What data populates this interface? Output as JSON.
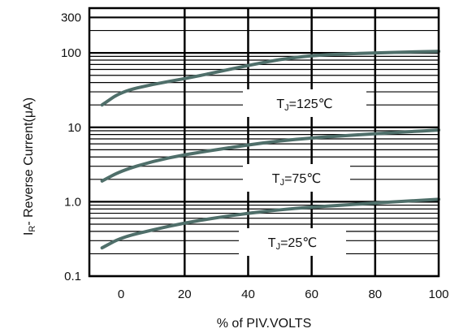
{
  "chart_data": {
    "type": "line",
    "title": "",
    "xlabel": "% of PIV.VOLTS",
    "ylabel_parts": {
      "main": "I",
      "sub": "R",
      "rest": "- Reverse Current(μA)"
    },
    "xscale": "linear",
    "yscale": "log",
    "xlim": [
      -10,
      100
    ],
    "ylim": [
      0.1,
      400
    ],
    "grid": true,
    "x_ticks": [
      {
        "value": 0,
        "label": "0"
      },
      {
        "value": 20,
        "label": "20"
      },
      {
        "value": 40,
        "label": "40"
      },
      {
        "value": 60,
        "label": "60"
      },
      {
        "value": 80,
        "label": "80"
      },
      {
        "value": 100,
        "label": "100"
      }
    ],
    "y_ticks": [
      {
        "value": 0.1,
        "label": "0.1"
      },
      {
        "value": 1.0,
        "label": "1.0"
      },
      {
        "value": 10,
        "label": "10"
      },
      {
        "value": 100,
        "label": "100"
      },
      {
        "value": 300,
        "label": "300"
      }
    ],
    "series": [
      {
        "label_parts": {
          "main": "T",
          "sub": "J",
          "rest": "=125℃"
        },
        "x": [
          -6,
          0,
          10,
          20,
          30,
          40,
          50,
          60,
          70,
          80,
          90,
          100
        ],
        "y": [
          20,
          30,
          38,
          45,
          55,
          68,
          82,
          92,
          97,
          100,
          103,
          105
        ]
      },
      {
        "label_parts": {
          "main": "T",
          "sub": "J",
          "rest": "=75℃"
        },
        "x": [
          -6,
          0,
          10,
          20,
          30,
          40,
          50,
          60,
          70,
          80,
          90,
          100
        ],
        "y": [
          1.9,
          2.6,
          3.5,
          4.3,
          5.0,
          5.8,
          6.6,
          7.2,
          7.7,
          8.2,
          8.7,
          9.2
        ]
      },
      {
        "label_parts": {
          "main": "T",
          "sub": "J",
          "rest": "=25℃"
        },
        "x": [
          -6,
          0,
          10,
          20,
          30,
          40,
          50,
          60,
          70,
          80,
          90,
          100
        ],
        "y": [
          0.24,
          0.33,
          0.42,
          0.52,
          0.61,
          0.7,
          0.78,
          0.85,
          0.9,
          0.96,
          1.02,
          1.08
        ]
      }
    ],
    "line_color": "#4f6f6a"
  }
}
